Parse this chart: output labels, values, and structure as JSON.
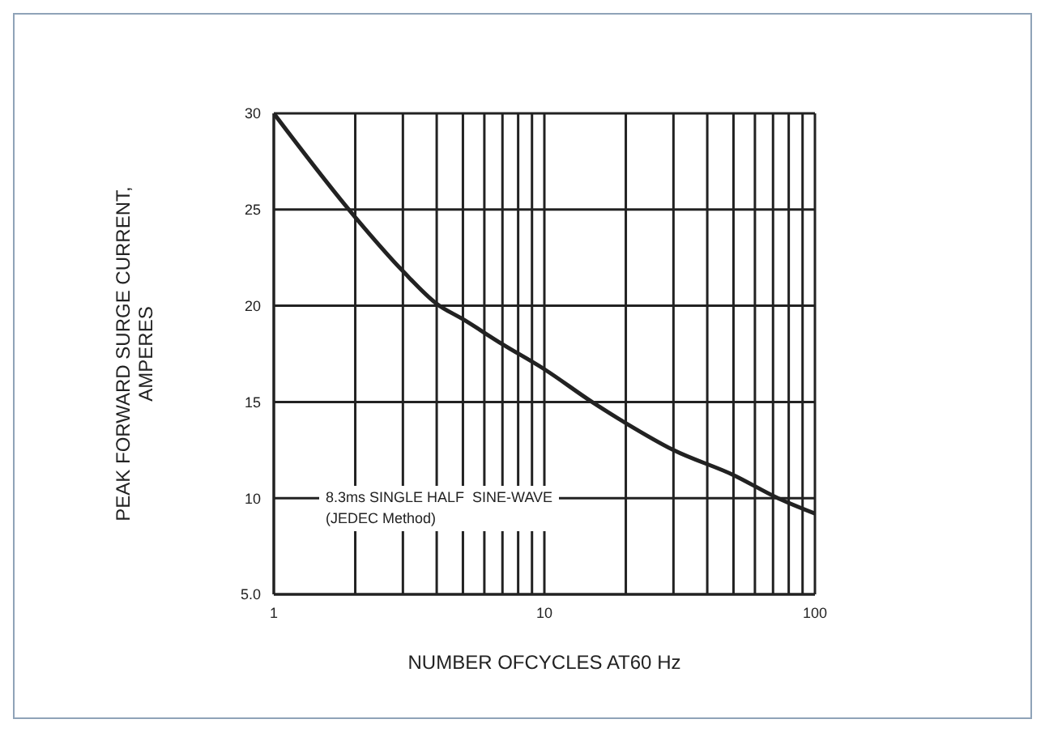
{
  "chart_data": {
    "type": "line",
    "xlabel": "NUMBER OFCYCLES AT60 Hz",
    "ylabel": "PEAK  FORWARD SURGE CURRENT,\nAMPERES",
    "annotations": [
      "8.3ms SINGLE HALF  SINE-WAVE\n(JEDEC Method)"
    ],
    "x": [
      1,
      2,
      3,
      4,
      5,
      7,
      10,
      15,
      20,
      30,
      50,
      73,
      100
    ],
    "series": [
      {
        "color": "#222222",
        "values": [
          30,
          24.6,
          21.8,
          20.1,
          19.3,
          18,
          16.7,
          15,
          13.9,
          12.5,
          11.2,
          10,
          9.2
        ]
      }
    ],
    "log": "x",
    "xlim": [
      1,
      100
    ],
    "xticks": [
      1,
      {
        "value": 2,
        "label": null
      },
      {
        "value": 3,
        "label": null
      },
      {
        "value": 4,
        "label": null
      },
      {
        "value": 5,
        "label": null
      },
      {
        "value": 6,
        "label": null
      },
      {
        "value": 7,
        "label": null
      },
      {
        "value": 8,
        "label": null
      },
      {
        "value": 9,
        "label": null
      },
      10,
      {
        "value": 20,
        "label": null
      },
      {
        "value": 30,
        "label": null
      },
      {
        "value": 40,
        "label": null
      },
      {
        "value": 50,
        "label": null
      },
      {
        "value": 60,
        "label": null
      },
      {
        "value": 70,
        "label": null
      },
      {
        "value": 80,
        "label": null
      },
      {
        "value": 90,
        "label": null
      },
      100
    ],
    "ylim": [
      5,
      30
    ],
    "yticks": [
      {
        "value": 5,
        "label": "5.0"
      },
      10,
      15,
      20,
      25,
      30
    ],
    "grid": true
  }
}
